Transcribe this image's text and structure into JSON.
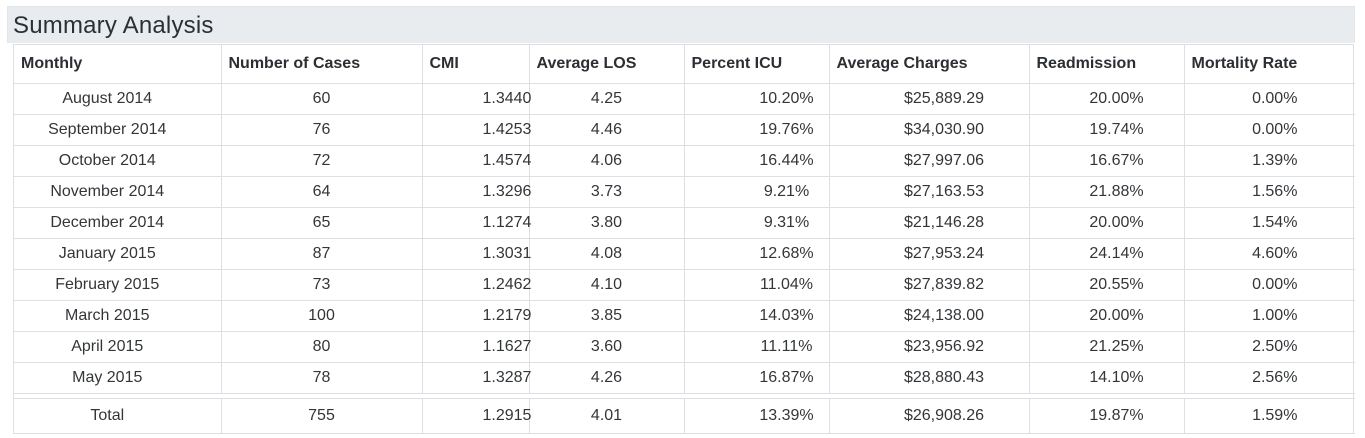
{
  "panel": {
    "title": "Summary Analysis"
  },
  "table": {
    "headers": [
      "Monthly",
      "Number of Cases",
      "CMI",
      "Average LOS",
      "Percent ICU",
      "Average Charges",
      "Readmission",
      "Mortality Rate"
    ],
    "rows": [
      [
        "August 2014",
        "60",
        "1.3440",
        "4.25",
        "10.20%",
        "$25,889.29",
        "20.00%",
        "0.00%"
      ],
      [
        "September 2014",
        "76",
        "1.4253",
        "4.46",
        "19.76%",
        "$34,030.90",
        "19.74%",
        "0.00%"
      ],
      [
        "October 2014",
        "72",
        "1.4574",
        "4.06",
        "16.44%",
        "$27,997.06",
        "16.67%",
        "1.39%"
      ],
      [
        "November 2014",
        "64",
        "1.3296",
        "3.73",
        "9.21%",
        "$27,163.53",
        "21.88%",
        "1.56%"
      ],
      [
        "December 2014",
        "65",
        "1.1274",
        "3.80",
        "9.31%",
        "$21,146.28",
        "20.00%",
        "1.54%"
      ],
      [
        "January 2015",
        "87",
        "1.3031",
        "4.08",
        "12.68%",
        "$27,953.24",
        "24.14%",
        "4.60%"
      ],
      [
        "February 2015",
        "73",
        "1.2462",
        "4.10",
        "11.04%",
        "$27,839.82",
        "20.55%",
        "0.00%"
      ],
      [
        "March 2015",
        "100",
        "1.2179",
        "3.85",
        "14.03%",
        "$24,138.00",
        "20.00%",
        "1.00%"
      ],
      [
        "April 2015",
        "80",
        "1.1627",
        "3.60",
        "11.11%",
        "$23,956.92",
        "21.25%",
        "2.50%"
      ],
      [
        "May 2015",
        "78",
        "1.3287",
        "4.26",
        "16.87%",
        "$28,880.43",
        "14.10%",
        "2.56%"
      ]
    ],
    "total": [
      "Total",
      "755",
      "1.2915",
      "4.01",
      "13.39%",
      "$26,908.26",
      "19.87%",
      "1.59%"
    ]
  }
}
